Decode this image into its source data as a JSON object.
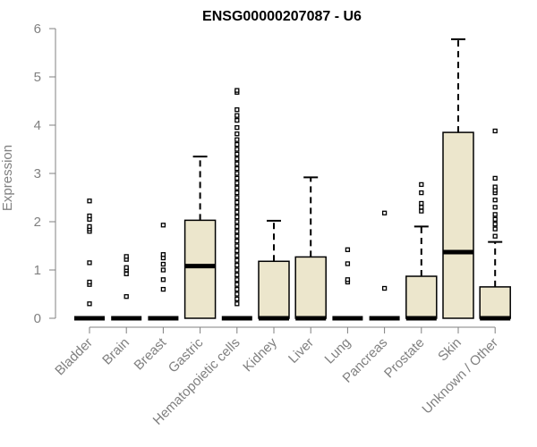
{
  "chart_data": {
    "type": "box",
    "title": "ENSG00000207087 - U6",
    "xlabel": "",
    "ylabel": "Expression",
    "ylim": [
      0,
      6
    ],
    "yticks": [
      0,
      1,
      2,
      3,
      4,
      5,
      6
    ],
    "grid": false,
    "legend": "none",
    "colors": {
      "box_fill": "#ece6cc",
      "stroke": "#000000",
      "axis": "#808080"
    },
    "categories": [
      "Bladder",
      "Brain",
      "Breast",
      "Gastric",
      "Hematopoietic cells",
      "Kidney",
      "Liver",
      "Lung",
      "Pancreas",
      "Prostate",
      "Skin",
      "Unknown / Other"
    ],
    "boxes": [
      {
        "q1": 0,
        "median": 0,
        "q3": 0,
        "whisker_low": 0,
        "whisker_high": 0,
        "outliers": [
          0.3,
          0.7,
          0.75,
          1.15,
          1.8,
          1.85,
          1.9,
          2.05,
          2.12,
          2.43
        ]
      },
      {
        "q1": 0,
        "median": 0,
        "q3": 0,
        "whisker_low": 0,
        "whisker_high": 0,
        "outliers": [
          0.45,
          0.92,
          1.0,
          1.05,
          1.22,
          1.28
        ]
      },
      {
        "q1": 0,
        "median": 0,
        "q3": 0,
        "whisker_low": 0,
        "whisker_high": 0,
        "outliers": [
          0.6,
          0.8,
          1.0,
          1.12,
          1.25,
          1.32,
          1.93
        ]
      },
      {
        "q1": 0,
        "median": 1.08,
        "q3": 2.03,
        "whisker_low": 0,
        "whisker_high": 3.35,
        "outliers": []
      },
      {
        "q1": 0,
        "median": 0,
        "q3": 0,
        "whisker_low": 0,
        "whisker_high": 0,
        "outliers": [
          0.3,
          0.4,
          0.5,
          0.6,
          0.7,
          0.8,
          0.9,
          1.0,
          1.1,
          1.2,
          1.3,
          1.4,
          1.5,
          1.6,
          1.7,
          1.8,
          1.9,
          2.0,
          2.1,
          2.2,
          2.3,
          2.4,
          2.5,
          2.6,
          2.7,
          2.8,
          2.9,
          3.0,
          3.1,
          3.2,
          3.3,
          3.4,
          3.5,
          3.6,
          3.7,
          3.82,
          3.95,
          4.1,
          4.2,
          4.32,
          4.68,
          4.72
        ]
      },
      {
        "q1": 0,
        "median": 0,
        "q3": 1.18,
        "whisker_low": 0,
        "whisker_high": 2.02,
        "outliers": []
      },
      {
        "q1": 0,
        "median": 0,
        "q3": 1.27,
        "whisker_low": 0,
        "whisker_high": 2.92,
        "outliers": []
      },
      {
        "q1": 0,
        "median": 0,
        "q3": 0,
        "whisker_low": 0,
        "whisker_high": 0,
        "outliers": [
          0.75,
          0.8,
          1.13,
          1.42
        ]
      },
      {
        "q1": 0,
        "median": 0,
        "q3": 0,
        "whisker_low": 0,
        "whisker_high": 0,
        "outliers": [
          0.62,
          2.18
        ]
      },
      {
        "q1": 0,
        "median": 0,
        "q3": 0.87,
        "whisker_low": 0,
        "whisker_high": 1.9,
        "outliers": [
          2.22,
          2.3,
          2.38,
          2.6,
          2.77
        ]
      },
      {
        "q1": 0,
        "median": 1.37,
        "q3": 3.85,
        "whisker_low": 0,
        "whisker_high": 5.78,
        "outliers": []
      },
      {
        "q1": 0,
        "median": 0,
        "q3": 0.65,
        "whisker_low": 0,
        "whisker_high": 1.58,
        "outliers": [
          1.7,
          1.85,
          1.95,
          2.05,
          2.15,
          2.3,
          2.45,
          2.6,
          2.65,
          2.72,
          2.9,
          3.88
        ]
      }
    ]
  }
}
